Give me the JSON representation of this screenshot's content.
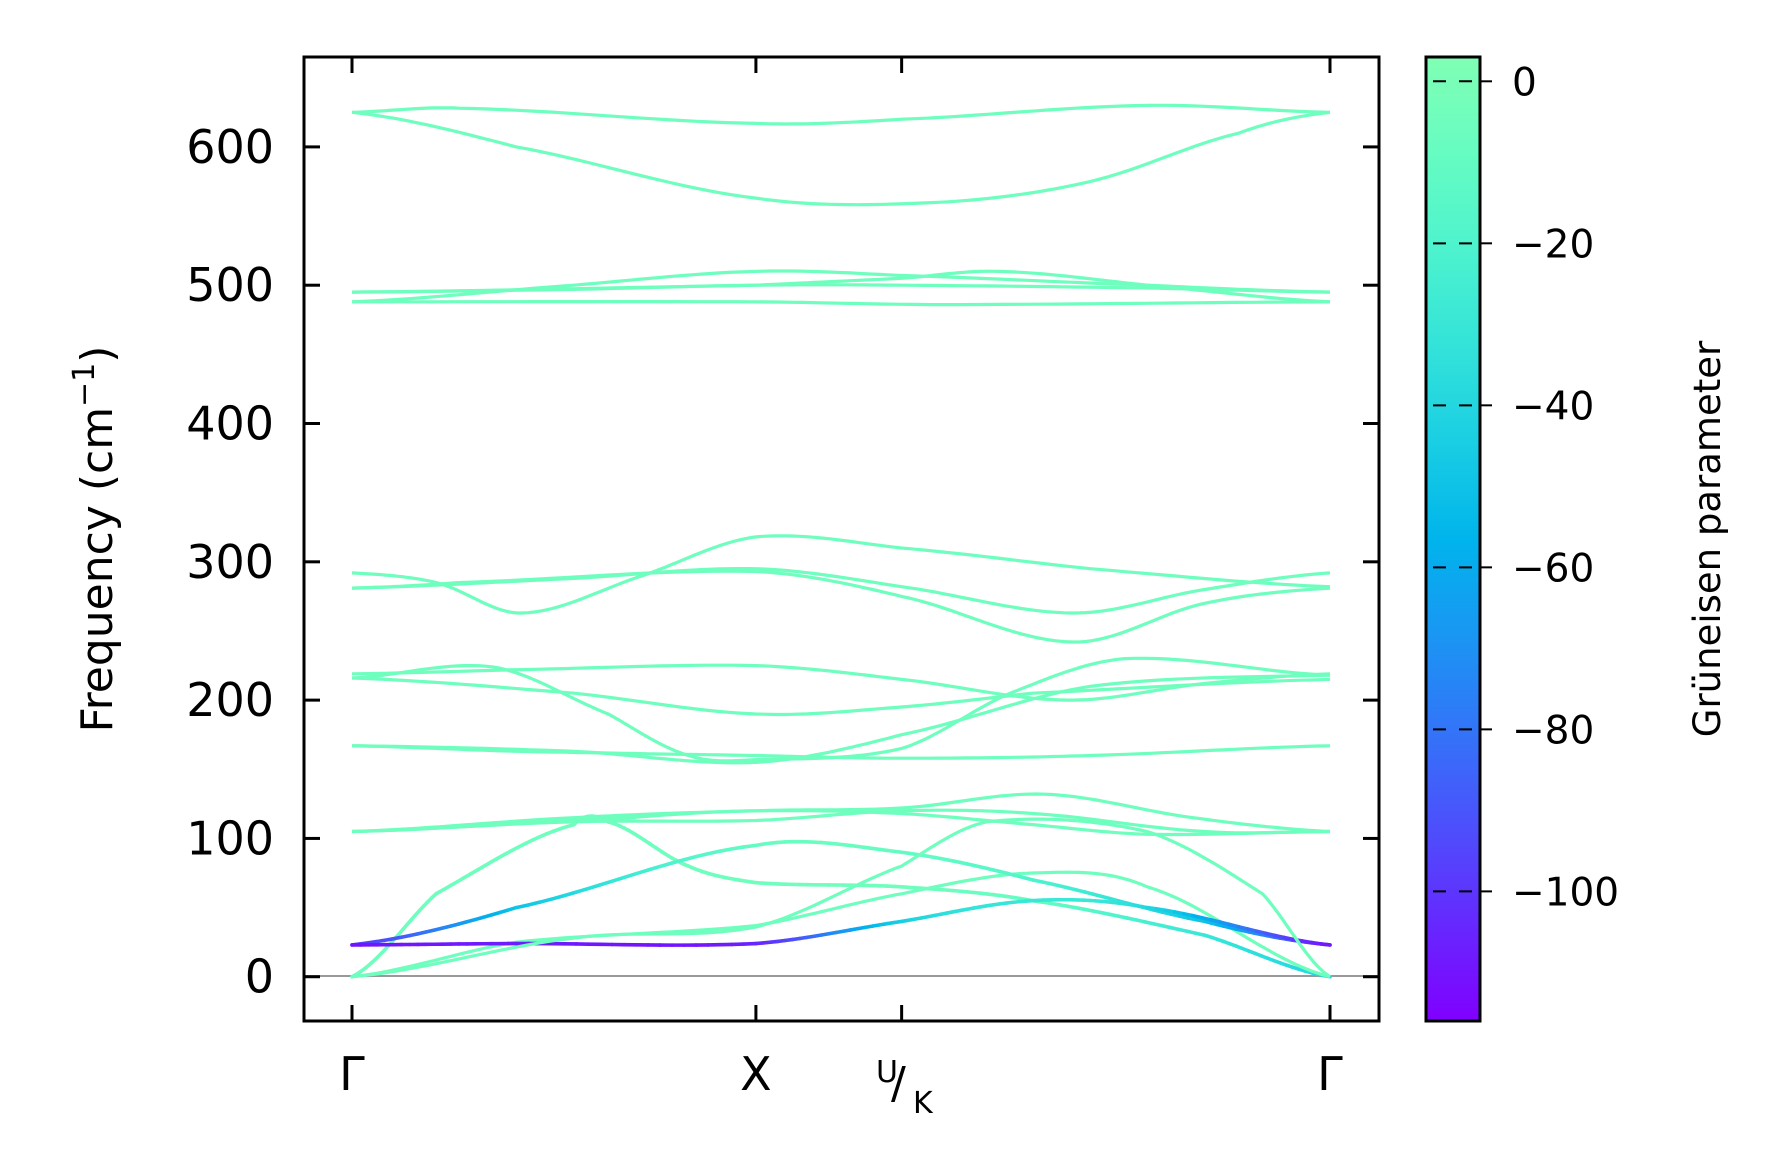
{
  "chart_data": {
    "type": "line",
    "title": "",
    "ylabel": "Frequency (cm⁻¹)",
    "ylabel_main": "Frequency (cm",
    "ylabel_sup": "−1",
    "ylabel_end": ")",
    "ylim": [
      -32,
      665
    ],
    "yticks": [
      0,
      100,
      200,
      300,
      400,
      500,
      600
    ],
    "ytick_labels": [
      "0",
      "100",
      "200",
      "300",
      "400",
      "500",
      "600"
    ],
    "xticks": [
      0,
      0.413,
      0.562,
      1
    ],
    "xtick_labels": [
      "Γ",
      "X",
      "U",
      "Γ"
    ],
    "xtick_uk": {
      "u": "U",
      "slash": "/",
      "k": "K"
    },
    "colorbar": {
      "label": "Grüneisen parameter",
      "range": [
        -116,
        3
      ],
      "ticks": [
        0,
        -20,
        -40,
        -60,
        -80,
        -100
      ],
      "tick_labels": [
        "0",
        "−20",
        "−40",
        "−60",
        "−80",
        "−100"
      ]
    },
    "bands": [
      {
        "x": [
          0,
          0.109,
          0.413,
          0.562,
          0.813,
          1
        ],
        "freq": [
          625,
          628,
          617,
          620,
          630,
          625
        ]
      },
      {
        "x": [
          0,
          0.168,
          0.413,
          0.602,
          0.755,
          0.907,
          1
        ],
        "freq": [
          625,
          600,
          563,
          560,
          575,
          610,
          625
        ]
      },
      {
        "x": [
          0,
          0.227,
          0.413,
          0.562,
          0.813,
          1
        ],
        "freq": [
          495,
          497,
          500,
          500,
          498,
          495
        ]
      },
      {
        "x": [
          0,
          0.227,
          0.413,
          0.562,
          0.813,
          1
        ],
        "freq": [
          488,
          500,
          510,
          507,
          500,
          495
        ]
      },
      {
        "x": [
          0,
          0.413,
          0.602,
          1
        ],
        "freq": [
          488,
          488,
          486,
          488
        ]
      },
      {
        "x": [
          0,
          0.413,
          0.562,
          0.661,
          0.813,
          1
        ],
        "freq": [
          495,
          500,
          505,
          510,
          500,
          488
        ]
      },
      {
        "x": [
          0,
          0.086,
          0.174,
          0.297,
          0.413,
          0.562,
          0.755,
          1
        ],
        "freq": [
          292,
          285,
          263,
          290,
          318,
          310,
          295,
          282
        ]
      },
      {
        "x": [
          0,
          0.227,
          0.413,
          0.562,
          0.737,
          0.872,
          1
        ],
        "freq": [
          281,
          288,
          295,
          282,
          263,
          280,
          292
        ]
      },
      {
        "x": [
          0,
          0.109,
          0.413,
          0.562,
          0.737,
          0.872,
          1
        ],
        "freq": [
          281,
          285,
          293,
          275,
          242,
          270,
          281
        ]
      },
      {
        "x": [
          0,
          0.168,
          0.413,
          0.562,
          0.731,
          0.872,
          1
        ],
        "freq": [
          219,
          222,
          225,
          215,
          200,
          212,
          219
        ]
      },
      {
        "x": [
          0,
          0.144,
          0.262,
          0.344,
          0.413,
          0.562,
          0.673,
          0.79,
          1
        ],
        "freq": [
          216,
          224,
          190,
          160,
          157,
          165,
          205,
          230,
          218
        ]
      },
      {
        "x": [
          0,
          0.227,
          0.413,
          0.562,
          0.696,
          1
        ],
        "freq": [
          216,
          205,
          190,
          195,
          205,
          215
        ]
      },
      {
        "x": [
          0,
          0.227,
          0.413,
          0.562,
          0.755,
          1
        ],
        "freq": [
          167,
          163,
          155,
          175,
          210,
          218
        ]
      },
      {
        "x": [
          0,
          0.168,
          0.413,
          0.562,
          0.755,
          1
        ],
        "freq": [
          167,
          163,
          160,
          158,
          160,
          167
        ]
      },
      {
        "x": [
          0,
          0.227,
          0.413,
          0.562,
          0.708,
          0.86,
          1
        ],
        "freq": [
          105,
          115,
          120,
          122,
          132,
          115,
          105
        ]
      },
      {
        "x": [
          0,
          0.227,
          0.413,
          0.562,
          0.696,
          0.872,
          1
        ],
        "freq": [
          105,
          112,
          113,
          120,
          118,
          105,
          105
        ]
      },
      {
        "x": [
          0,
          0.285,
          0.413,
          0.562,
          0.696,
          0.813,
          1
        ],
        "freq": [
          105,
          115,
          120,
          118,
          110,
          103,
          105
        ]
      },
      {
        "x": [
          0,
          0.086,
          0.227,
          0.262,
          0.344,
          0.413,
          0.562,
          0.696,
          0.872,
          1
        ],
        "freq": [
          0,
          60,
          110,
          112,
          80,
          68,
          65,
          55,
          30,
          0
        ],
        "gruneisen": [
          -5,
          -5,
          -5,
          -5,
          -5,
          -5,
          -5,
          -10,
          -30,
          -40
        ]
      },
      {
        "x": [
          0,
          0.168,
          0.413,
          0.562,
          0.696,
          0.813,
          1
        ],
        "freq": [
          0,
          25,
          37,
          60,
          75,
          65,
          0
        ]
      },
      {
        "x": [
          0,
          0.168,
          0.413,
          0.562,
          0.696,
          0.872,
          1
        ],
        "freq": [
          23,
          50,
          95,
          90,
          70,
          40,
          23
        ],
        "gruneisen": [
          -100,
          -50,
          -10,
          -10,
          -20,
          -50,
          -100
        ]
      },
      {
        "x": [
          0,
          0.168,
          0.413,
          0.562,
          0.696,
          0.813,
          1
        ],
        "freq": [
          23,
          24,
          24,
          40,
          55,
          50,
          23
        ],
        "gruneisen": [
          -110,
          -108,
          -105,
          -45,
          -30,
          -40,
          -110
        ]
      },
      {
        "x": [
          0,
          0.227,
          0.413,
          0.562,
          0.649,
          0.813,
          0.931,
          1
        ],
        "freq": [
          0,
          28,
          36,
          80,
          112,
          105,
          60,
          0
        ]
      }
    ]
  }
}
